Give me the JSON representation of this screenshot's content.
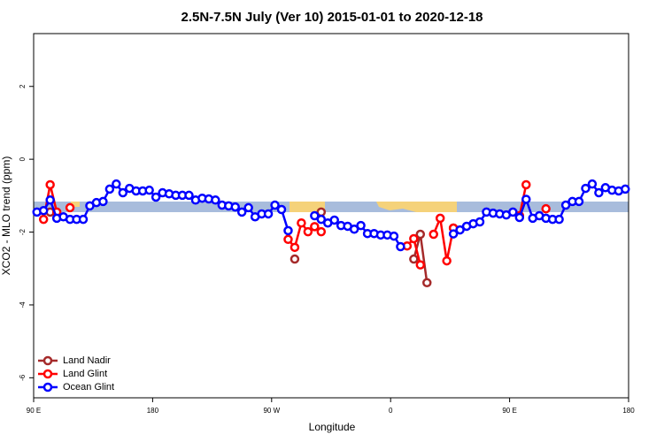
{
  "chart_data": {
    "type": "line",
    "title": "2.5N-7.5N July (Ver 10)   2015-01-01 to 2020-12-18",
    "x_label": "Longitude",
    "y_label": "XCO2 - MLO trend (ppm)",
    "x": [
      92.5,
      97.5,
      102.5,
      107.5,
      112.5,
      117.5,
      122.5,
      127.5,
      132.5,
      137.5,
      142.5,
      147.5,
      152.5,
      157.5,
      162.5,
      167.5,
      172.5,
      177.5,
      182.5,
      187.5,
      192.5,
      197.5,
      202.5,
      207.5,
      212.5,
      217.5,
      222.5,
      227.5,
      232.5,
      237.5,
      242.5,
      247.5,
      252.5,
      257.5,
      262.5,
      267.5,
      272.5,
      277.5,
      282.5,
      287.5,
      292.5,
      297.5,
      302.5,
      307.5,
      312.5,
      317.5,
      322.5,
      327.5,
      332.5,
      337.5,
      342.5,
      347.5,
      352.5,
      357.5,
      362.5,
      367.5,
      372.5,
      377.5,
      382.5,
      387.5,
      392.5,
      397.5,
      402.5,
      407.5,
      412.5,
      417.5,
      422.5,
      427.5,
      432.5,
      437.5,
      442.5,
      447.5,
      452.5,
      457.5,
      462.5,
      467.5,
      472.5,
      477.5,
      482.5,
      487.5,
      492.5,
      497.5,
      502.5,
      507.5,
      512.5,
      517.5,
      522.5,
      527.5,
      532.5,
      537.5
    ],
    "series": [
      {
        "name": "Land Nadir",
        "color": "#a52a2a",
        "values": [
          null,
          null,
          -1.45,
          null,
          null,
          null,
          null,
          null,
          null,
          null,
          null,
          null,
          null,
          null,
          null,
          null,
          null,
          null,
          null,
          null,
          null,
          null,
          null,
          null,
          null,
          null,
          null,
          null,
          null,
          null,
          null,
          null,
          null,
          null,
          null,
          null,
          null,
          null,
          null,
          -2.74,
          null,
          null,
          null,
          -1.45,
          null,
          null,
          null,
          null,
          null,
          null,
          null,
          null,
          null,
          null,
          null,
          null,
          null,
          -2.74,
          -2.06,
          -3.39,
          null,
          null,
          null,
          -1.89,
          null,
          null,
          null,
          null,
          null,
          null,
          null,
          null,
          null,
          null,
          null,
          null,
          null,
          null,
          null,
          null,
          null,
          null,
          null,
          null,
          null,
          null,
          null,
          null,
          null,
          null
        ]
      },
      {
        "name": "Land Glint",
        "color": "#ff0000",
        "values": [
          null,
          -1.65,
          -0.7,
          -1.45,
          null,
          -1.33,
          null,
          null,
          null,
          null,
          null,
          null,
          null,
          null,
          null,
          null,
          null,
          null,
          null,
          null,
          null,
          null,
          null,
          null,
          null,
          null,
          null,
          null,
          null,
          null,
          null,
          null,
          null,
          null,
          null,
          null,
          null,
          null,
          -2.2,
          -2.42,
          -1.75,
          -1.99,
          -1.85,
          -1.99,
          null,
          null,
          null,
          null,
          null,
          null,
          null,
          null,
          null,
          null,
          null,
          null,
          -2.38,
          -2.18,
          -2.9,
          null,
          -2.06,
          -1.62,
          -2.79,
          -1.89,
          null,
          null,
          null,
          null,
          null,
          null,
          null,
          null,
          null,
          -1.55,
          -0.7,
          null,
          null,
          -1.36,
          null,
          null,
          null,
          null,
          null,
          null,
          null,
          null,
          null,
          null,
          null,
          null
        ]
      },
      {
        "name": "Ocean Glint",
        "color": "#0000ff",
        "values": [
          -1.45,
          -1.41,
          -1.12,
          -1.62,
          -1.58,
          -1.65,
          -1.65,
          -1.65,
          -1.28,
          -1.19,
          -1.16,
          -0.82,
          -0.68,
          -0.92,
          -0.8,
          -0.87,
          -0.87,
          -0.85,
          -1.04,
          -0.92,
          -0.95,
          -0.99,
          -0.99,
          -0.99,
          -1.12,
          -1.07,
          -1.09,
          -1.12,
          -1.26,
          -1.28,
          -1.31,
          -1.45,
          -1.33,
          -1.58,
          -1.5,
          -1.5,
          -1.26,
          -1.38,
          -1.96,
          null,
          null,
          null,
          -1.55,
          -1.65,
          -1.75,
          -1.67,
          -1.82,
          -1.84,
          -1.92,
          -1.82,
          -2.04,
          -2.04,
          -2.08,
          -2.08,
          -2.11,
          -2.4,
          null,
          null,
          null,
          null,
          null,
          null,
          null,
          -2.05,
          -1.94,
          -1.84,
          -1.77,
          -1.72,
          -1.45,
          -1.48,
          -1.5,
          -1.53,
          -1.45,
          -1.6,
          -1.1,
          -1.62,
          -1.55,
          -1.62,
          -1.65,
          -1.65,
          -1.26,
          -1.16,
          -1.16,
          -0.8,
          -0.68,
          -0.92,
          -0.78,
          -0.85,
          -0.87,
          -0.82
        ]
      }
    ],
    "xlim": [
      90,
      540
    ],
    "xticks": [
      {
        "value": 90,
        "label": "90 E"
      },
      {
        "value": 180,
        "label": "180"
      },
      {
        "value": 270,
        "label": "90 W"
      },
      {
        "value": 360,
        "label": "0"
      },
      {
        "value": 450,
        "label": "90 E"
      },
      {
        "value": 540,
        "label": "180"
      }
    ],
    "ylim": [
      -6.55,
      3.45
    ],
    "yticks": [
      -6,
      -4,
      -2,
      0,
      2
    ],
    "legend": "bottom-left"
  }
}
